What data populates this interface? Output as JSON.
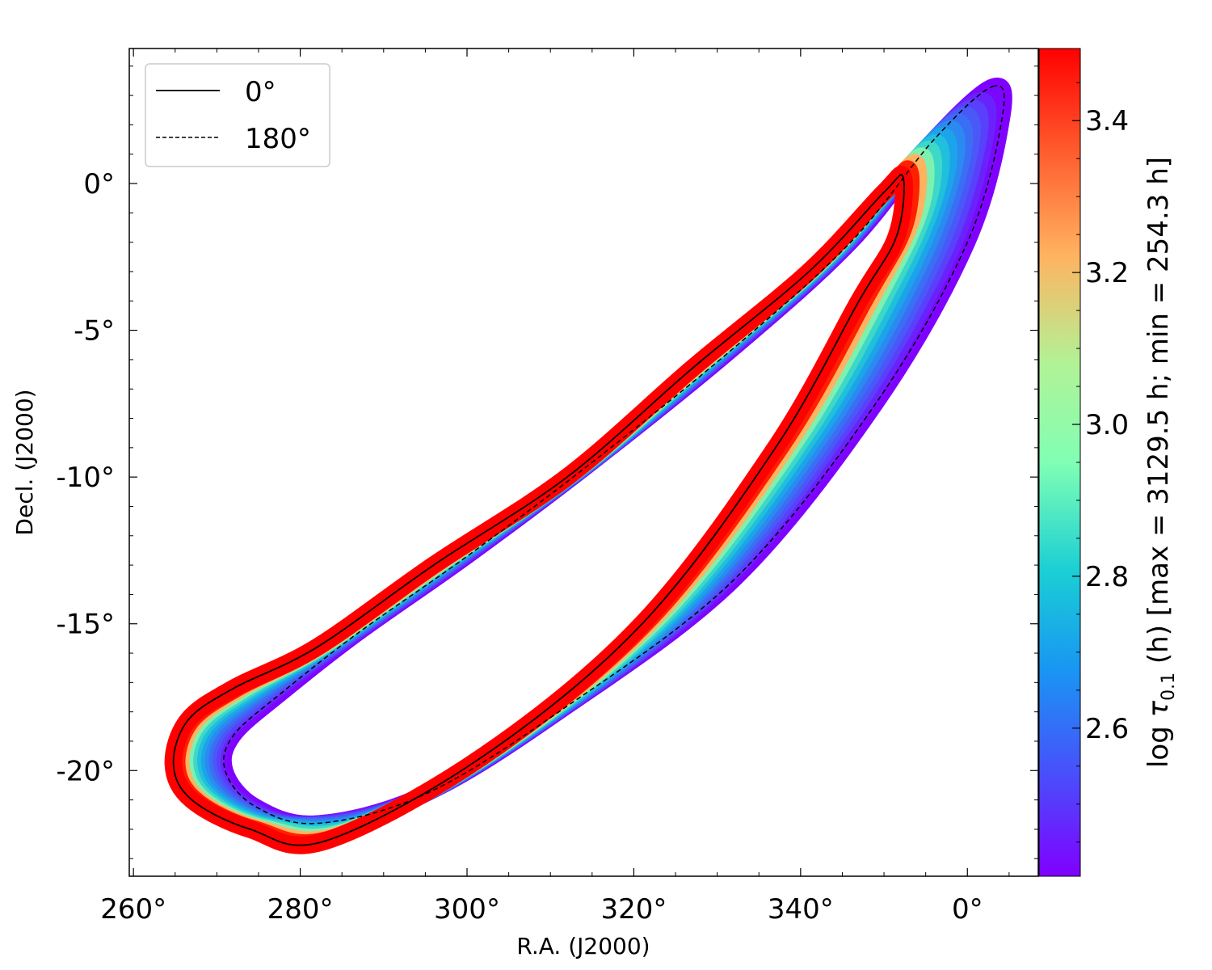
{
  "chart_data": {
    "type": "scatter",
    "xlabel": "R.A. (J2000)",
    "ylabel": "Decl. (J2000)",
    "x_ticks": [
      "260°",
      "280°",
      "300°",
      "320°",
      "340°",
      "0°"
    ],
    "x_tick_values": [
      260,
      280,
      300,
      320,
      340,
      360
    ],
    "y_ticks": [
      "0°",
      "-5°",
      "-10°",
      "-15°",
      "-20°"
    ],
    "y_tick_values": [
      0,
      -5,
      -10,
      -15,
      -20
    ],
    "xlim": [
      259.5,
      368.5
    ],
    "ylim": [
      -23.6,
      4.6
    ],
    "legend": {
      "position": "top-left",
      "entries": [
        {
          "label": "0°",
          "style": "solid"
        },
        {
          "label": "180°",
          "style": "dashed"
        }
      ]
    },
    "colorbar": {
      "label_prefix": "log ",
      "label_symbol": "τ",
      "label_subscript": "0.1",
      "label_suffix": " (h) [max = 3129.5 h; min = 254.3 h]",
      "ticks": [
        "2.6",
        "2.8",
        "3.0",
        "3.2",
        "3.4"
      ],
      "tick_values": [
        2.6,
        2.8,
        3.0,
        3.2,
        3.4
      ],
      "range": [
        2.405,
        3.495
      ],
      "colormap": "rainbow"
    },
    "curves": {
      "solid_0deg": [
        [
          352.3,
          0.2
        ],
        [
          351.5,
          -1.8
        ],
        [
          347.0,
          -4.0
        ],
        [
          337.0,
          -9.0
        ],
        [
          321.0,
          -15.0
        ],
        [
          302.0,
          -19.5
        ],
        [
          283.0,
          -22.4
        ],
        [
          274.0,
          -22.0
        ],
        [
          267.0,
          -21.0
        ],
        [
          264.8,
          -19.8
        ],
        [
          266.5,
          -18.3
        ],
        [
          272.0,
          -17.2
        ],
        [
          282.0,
          -15.8
        ],
        [
          296.0,
          -13.0
        ],
        [
          312.0,
          -10.0
        ],
        [
          327.0,
          -6.3
        ],
        [
          341.0,
          -3.0
        ],
        [
          350.0,
          -0.3
        ],
        [
          352.3,
          0.2
        ]
      ],
      "dashed_180deg": [
        [
          363.0,
          3.3
        ],
        [
          364.2,
          2.3
        ],
        [
          360.0,
          -2.0
        ],
        [
          349.0,
          -7.5
        ],
        [
          332.0,
          -13.5
        ],
        [
          311.0,
          -18.0
        ],
        [
          295.0,
          -20.8
        ],
        [
          282.0,
          -21.8
        ],
        [
          274.5,
          -21.2
        ],
        [
          271.0,
          -20.0
        ],
        [
          272.0,
          -18.8
        ],
        [
          278.0,
          -17.3
        ],
        [
          287.0,
          -15.3
        ],
        [
          300.0,
          -12.7
        ],
        [
          315.0,
          -9.5
        ],
        [
          332.0,
          -5.6
        ],
        [
          346.0,
          -2.0
        ],
        [
          356.0,
          1.5
        ],
        [
          363.0,
          3.3
        ]
      ]
    }
  }
}
